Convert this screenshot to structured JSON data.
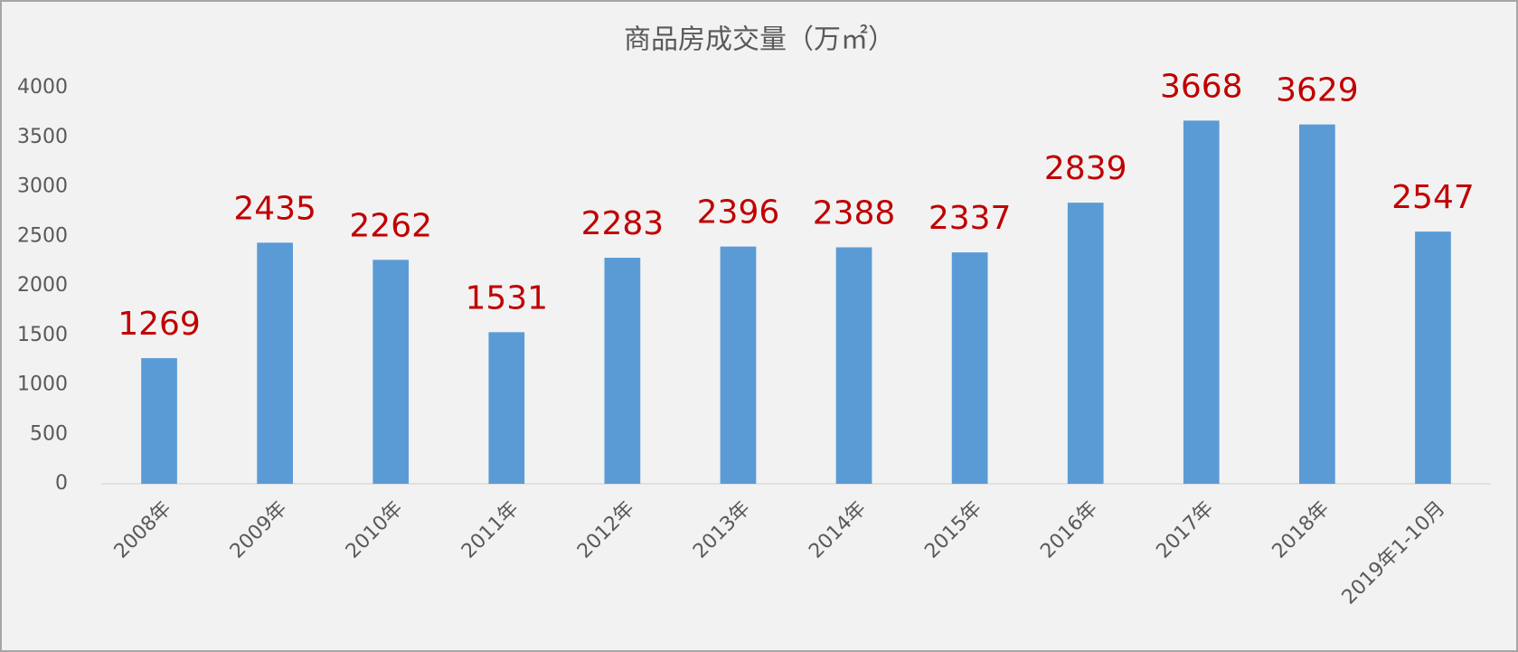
{
  "chart_data": {
    "type": "bar",
    "title": "商品房成交量（万㎡）",
    "categories": [
      "2008年",
      "2009年",
      "2010年",
      "2011年",
      "2012年",
      "2013年",
      "2014年",
      "2015年",
      "2016年",
      "2017年",
      "2018年",
      "2019年1-10月"
    ],
    "values": [
      1269,
      2435,
      2262,
      1531,
      2283,
      2396,
      2388,
      2337,
      2839,
      3668,
      3629,
      2547
    ],
    "color": "#5b9bd5",
    "label_color": "#c00000",
    "ylim": [
      0,
      4000
    ],
    "yticks": [
      0,
      500,
      1000,
      1500,
      2000,
      2500,
      3000,
      3500,
      4000
    ],
    "grid": false
  }
}
